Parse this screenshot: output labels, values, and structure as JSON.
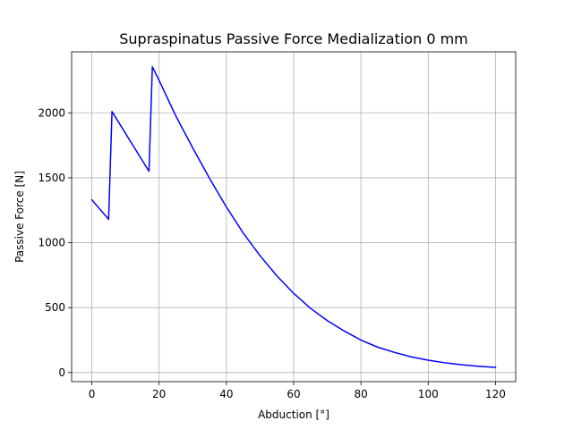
{
  "chart_data": {
    "type": "line",
    "title": "Supraspinatus Passive Force Medialization 0 mm",
    "xlabel": "Abduction [°]",
    "ylabel": "Passive Force [N]",
    "xlim": [
      -6,
      126
    ],
    "ylim": [
      -70,
      2470
    ],
    "xticks": [
      0,
      20,
      40,
      60,
      80,
      100,
      120
    ],
    "yticks": [
      0,
      500,
      1000,
      1500,
      2000
    ],
    "grid": true,
    "series": [
      {
        "color": "#0000ff",
        "x": [
          0,
          5,
          6,
          17,
          18,
          20,
          25,
          30,
          35,
          40,
          45,
          50,
          55,
          60,
          65,
          70,
          75,
          80,
          85,
          90,
          95,
          100,
          105,
          110,
          115,
          120
        ],
        "y": [
          1330,
          1180,
          2010,
          1550,
          2355,
          2250,
          1975,
          1730,
          1495,
          1275,
          1075,
          900,
          745,
          610,
          495,
          400,
          320,
          250,
          195,
          155,
          120,
          95,
          75,
          60,
          48,
          40
        ]
      }
    ]
  }
}
